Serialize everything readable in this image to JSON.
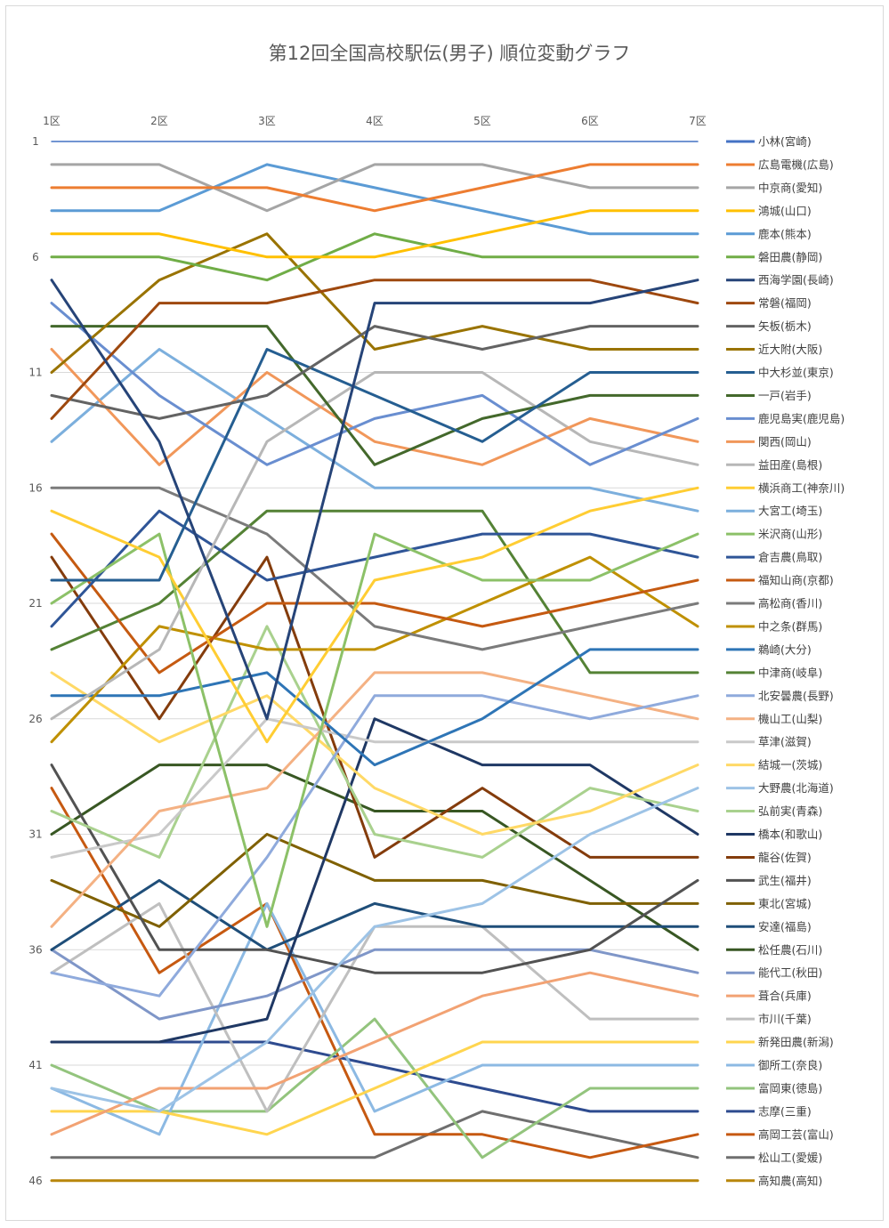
{
  "chart_data": {
    "type": "line",
    "title": "第12回全国高校駅伝(男子) 順位変動グラフ",
    "xlabel": "",
    "ylabel": "",
    "categories": [
      "1区",
      "2区",
      "3区",
      "4区",
      "5区",
      "6区",
      "7区"
    ],
    "y_ticks": [
      1,
      6,
      11,
      16,
      21,
      26,
      31,
      36,
      41,
      46
    ],
    "ylim": [
      1,
      46
    ],
    "y_reversed": true,
    "grid": true,
    "legend_position": "right",
    "series": [
      {
        "name": "小林(宮崎)",
        "color": "#4472c4",
        "values": [
          1,
          1,
          1,
          1,
          1,
          1,
          1
        ]
      },
      {
        "name": "広島電機(広島)",
        "color": "#ed7d31",
        "values": [
          3,
          3,
          3,
          4,
          3,
          2,
          2
        ]
      },
      {
        "name": "中京商(愛知)",
        "color": "#a5a5a5",
        "values": [
          2,
          2,
          4,
          2,
          2,
          3,
          3
        ]
      },
      {
        "name": "鴻城(山口)",
        "color": "#ffc000",
        "values": [
          5,
          5,
          6,
          6,
          5,
          4,
          4
        ]
      },
      {
        "name": "鹿本(熊本)",
        "color": "#5b9bd5",
        "values": [
          4,
          4,
          2,
          3,
          4,
          5,
          5
        ]
      },
      {
        "name": "磐田農(静岡)",
        "color": "#70ad47",
        "values": [
          6,
          6,
          7,
          5,
          6,
          6,
          6
        ]
      },
      {
        "name": "西海学園(長崎)",
        "color": "#264478",
        "values": [
          7,
          14,
          26,
          8,
          8,
          8,
          7
        ]
      },
      {
        "name": "常磐(福岡)",
        "color": "#9e480e",
        "values": [
          13,
          8,
          8,
          7,
          7,
          7,
          8
        ]
      },
      {
        "name": "矢板(栃木)",
        "color": "#636363",
        "values": [
          12,
          13,
          12,
          9,
          10,
          9,
          9
        ]
      },
      {
        "name": "近大附(大阪)",
        "color": "#997300",
        "values": [
          11,
          7,
          5,
          10,
          9,
          10,
          10
        ]
      },
      {
        "name": "中大杉並(東京)",
        "color": "#255e91",
        "values": [
          20,
          20,
          10,
          12,
          14,
          11,
          11
        ]
      },
      {
        "name": "一戸(岩手)",
        "color": "#43682b",
        "values": [
          9,
          9,
          9,
          15,
          13,
          12,
          12
        ]
      },
      {
        "name": "鹿児島実(鹿児島)",
        "color": "#698ed0",
        "values": [
          8,
          12,
          15,
          13,
          12,
          15,
          13
        ]
      },
      {
        "name": "関西(岡山)",
        "color": "#f1975a",
        "values": [
          10,
          15,
          11,
          14,
          15,
          13,
          14
        ]
      },
      {
        "name": "益田産(島根)",
        "color": "#b7b7b7",
        "values": [
          26,
          23,
          14,
          11,
          11,
          14,
          15
        ]
      },
      {
        "name": "横浜商工(神奈川)",
        "color": "#ffcd33",
        "values": [
          17,
          19,
          27,
          20,
          19,
          17,
          16
        ]
      },
      {
        "name": "大宮工(埼玉)",
        "color": "#7cafdd",
        "values": [
          14,
          10,
          13,
          16,
          16,
          16,
          17
        ]
      },
      {
        "name": "米沢商(山形)",
        "color": "#8cc168",
        "values": [
          21,
          18,
          35,
          18,
          20,
          20,
          18
        ]
      },
      {
        "name": "倉吉農(鳥取)",
        "color": "#2f5597",
        "values": [
          22,
          17,
          20,
          19,
          18,
          18,
          19
        ]
      },
      {
        "name": "福知山商(京都)",
        "color": "#c55a11",
        "values": [
          18,
          24,
          21,
          21,
          22,
          21,
          20
        ]
      },
      {
        "name": "高松商(香川)",
        "color": "#7b7b7b",
        "values": [
          16,
          16,
          18,
          22,
          23,
          22,
          21
        ]
      },
      {
        "name": "中之条(群馬)",
        "color": "#bf9000",
        "values": [
          27,
          22,
          23,
          23,
          21,
          19,
          22
        ]
      },
      {
        "name": "鵜崎(大分)",
        "color": "#2e75b6",
        "values": [
          25,
          25,
          24,
          28,
          26,
          23,
          23
        ]
      },
      {
        "name": "中津商(岐阜)",
        "color": "#548235",
        "values": [
          23,
          21,
          17,
          17,
          17,
          24,
          24
        ]
      },
      {
        "name": "北安曇農(長野)",
        "color": "#8faadc",
        "values": [
          37,
          38,
          32,
          25,
          25,
          26,
          25
        ]
      },
      {
        "name": "機山工(山梨)",
        "color": "#f4b183",
        "values": [
          35,
          30,
          29,
          24,
          24,
          25,
          26
        ]
      },
      {
        "name": "草津(滋賀)",
        "color": "#c9c9c9",
        "values": [
          32,
          31,
          26,
          27,
          27,
          27,
          27
        ]
      },
      {
        "name": "結城一(茨城)",
        "color": "#ffd966",
        "values": [
          24,
          27,
          25,
          29,
          31,
          30,
          28
        ]
      },
      {
        "name": "大野農(北海道)",
        "color": "#9dc3e6",
        "values": [
          42,
          43,
          40,
          35,
          34,
          31,
          29
        ]
      },
      {
        "name": "弘前実(青森)",
        "color": "#a9d18e",
        "values": [
          30,
          32,
          22,
          31,
          32,
          29,
          30
        ]
      },
      {
        "name": "橋本(和歌山)",
        "color": "#1f3864",
        "values": [
          40,
          40,
          39,
          26,
          28,
          28,
          31
        ]
      },
      {
        "name": "龍谷(佐賀)",
        "color": "#843c0c",
        "values": [
          19,
          26,
          19,
          32,
          29,
          32,
          32
        ]
      },
      {
        "name": "武生(福井)",
        "color": "#525252",
        "values": [
          28,
          36,
          36,
          37,
          37,
          36,
          33
        ]
      },
      {
        "name": "東北(宮城)",
        "color": "#7f6000",
        "values": [
          33,
          35,
          31,
          33,
          33,
          34,
          34
        ]
      },
      {
        "name": "安達(福島)",
        "color": "#1f4e79",
        "values": [
          36,
          33,
          36,
          34,
          35,
          35,
          35
        ]
      },
      {
        "name": "松任農(石川)",
        "color": "#385723",
        "values": [
          31,
          28,
          28,
          30,
          30,
          33,
          36
        ]
      },
      {
        "name": "能代工(秋田)",
        "color": "#7f96c8",
        "values": [
          36,
          39,
          38,
          36,
          36,
          36,
          37
        ]
      },
      {
        "name": "葺合(兵庫)",
        "color": "#f2a273",
        "values": [
          44,
          42,
          42,
          40,
          38,
          37,
          38
        ]
      },
      {
        "name": "市川(千葉)",
        "color": "#bfbfbf",
        "values": [
          37,
          34,
          43,
          35,
          35,
          39,
          39
        ]
      },
      {
        "name": "新発田農(新潟)",
        "color": "#ffd54f",
        "values": [
          43,
          43,
          44,
          42,
          40,
          40,
          40
        ]
      },
      {
        "name": "御所工(奈良)",
        "color": "#8cb9e3",
        "values": [
          42,
          44,
          34,
          43,
          41,
          41,
          41
        ]
      },
      {
        "name": "富岡東(徳島)",
        "color": "#93c47d",
        "values": [
          41,
          43,
          43,
          39,
          45,
          42,
          42
        ]
      },
      {
        "name": "志摩(三重)",
        "color": "#2e4b8f",
        "values": [
          40,
          40,
          40,
          41,
          42,
          43,
          43
        ]
      },
      {
        "name": "高岡工芸(富山)",
        "color": "#c65911",
        "values": [
          29,
          37,
          34,
          44,
          44,
          45,
          44
        ]
      },
      {
        "name": "松山工(愛媛)",
        "color": "#6f6f6f",
        "values": [
          45,
          45,
          45,
          45,
          43,
          44,
          45
        ]
      },
      {
        "name": "高知農(高知)",
        "color": "#b8860b",
        "values": [
          46,
          46,
          46,
          46,
          46,
          46,
          46
        ]
      }
    ]
  }
}
